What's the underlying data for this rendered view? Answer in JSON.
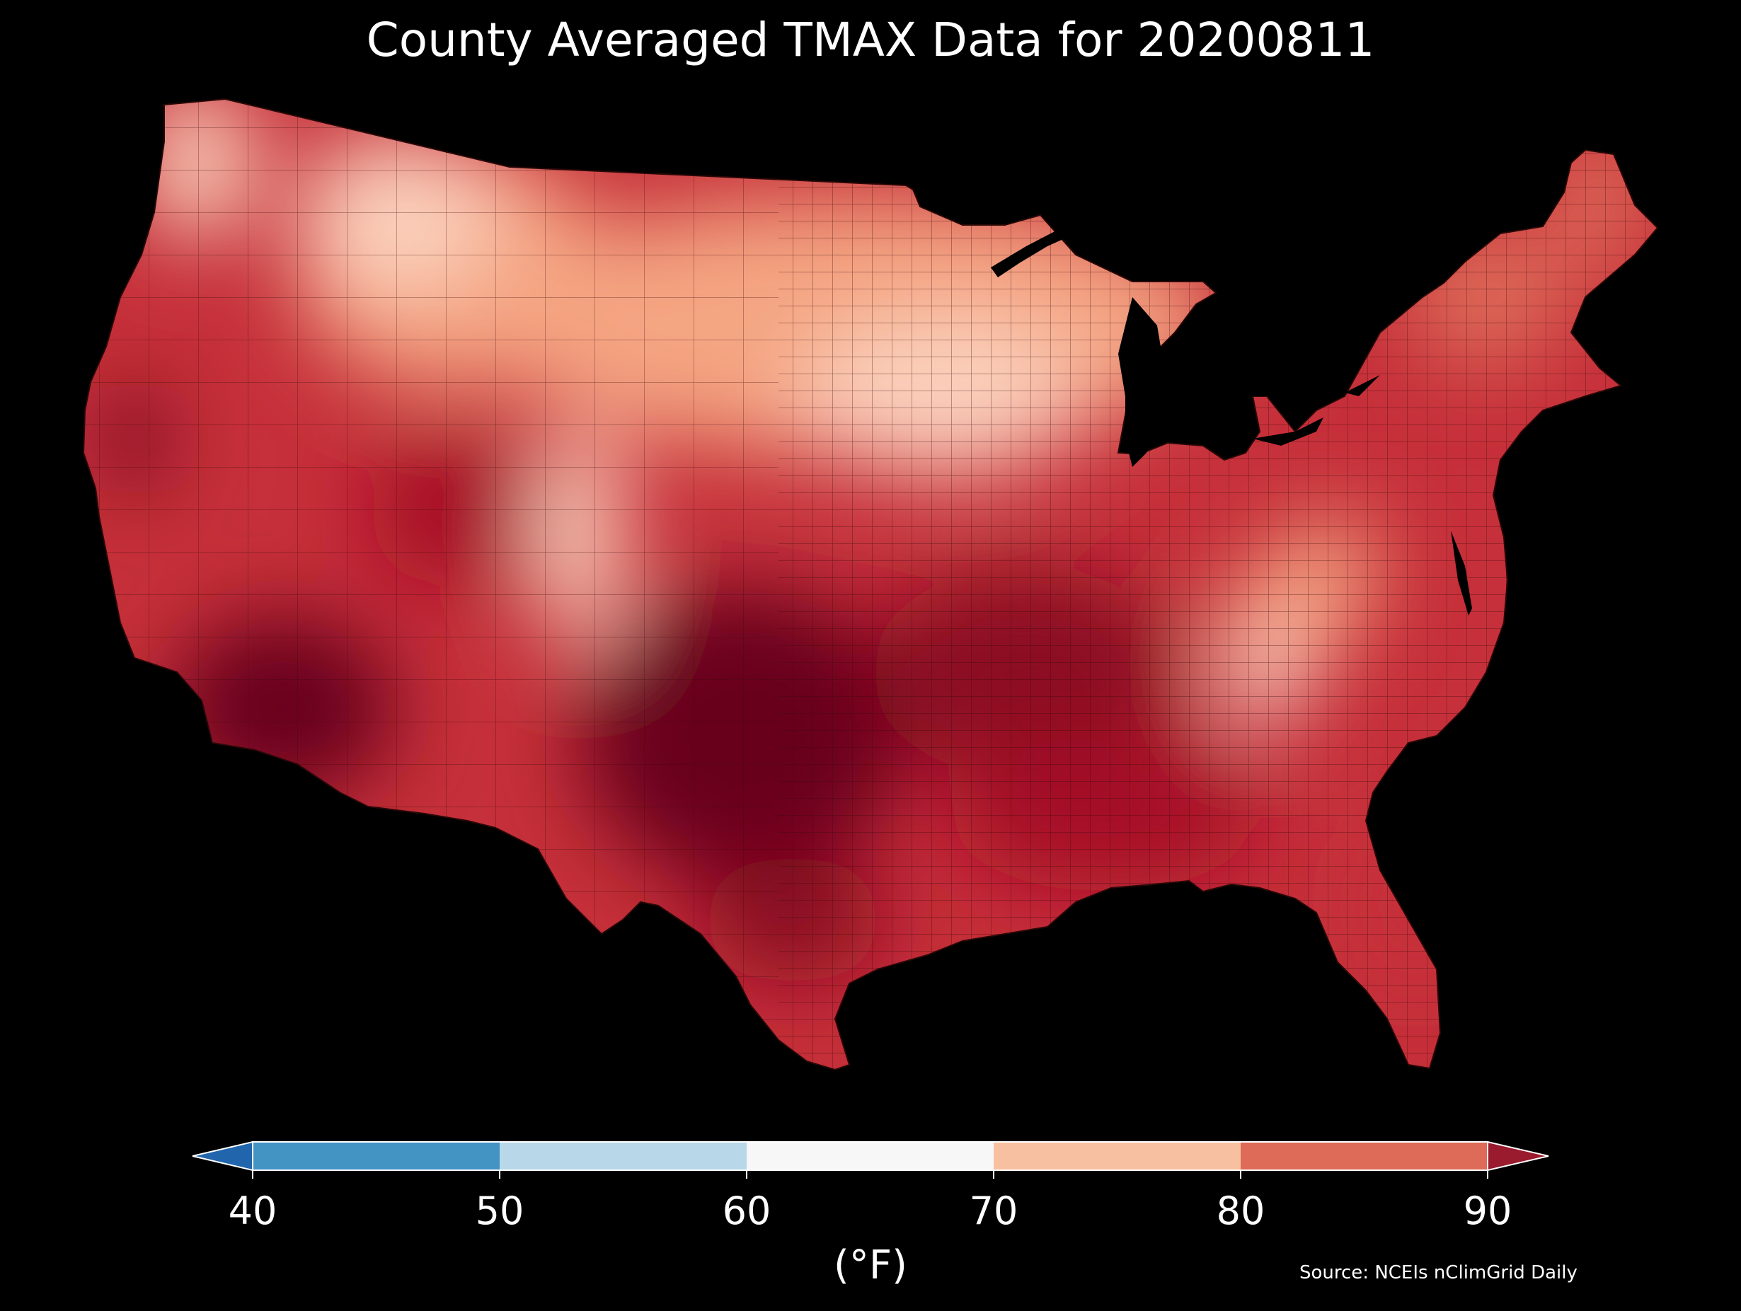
{
  "title": "County Averaged TMAX Data for 20200811",
  "source": "Source: NCEIs nClimGrid Daily",
  "colorbar": {
    "label": "(°F)",
    "ticks": [
      "40",
      "50",
      "60",
      "70",
      "80",
      "90"
    ],
    "bins": [
      {
        "range": "<40",
        "color": "#2166ac"
      },
      {
        "range": "40-50",
        "color": "#4393c3"
      },
      {
        "range": "50-60",
        "color": "#b8d8ea"
      },
      {
        "range": "60-70",
        "color": "#f7f7f7"
      },
      {
        "range": "70-80",
        "color": "#f7c1a1"
      },
      {
        "range": "80-90",
        "color": "#dd6b58"
      },
      {
        "range": ">90",
        "color": "#9a1a2e"
      }
    ],
    "extend": "both"
  },
  "map": {
    "region": "Contiguous United States counties",
    "variable": "TMAX",
    "background": "#000000",
    "palette": {
      "very_hot": "#67001f",
      "hot": "#a50f26",
      "warm": "#c6303a",
      "mild_warm": "#dd6b58",
      "mild": "#f4a582",
      "cool": "#fbd2bd",
      "cooler": "#fde7dc"
    }
  }
}
